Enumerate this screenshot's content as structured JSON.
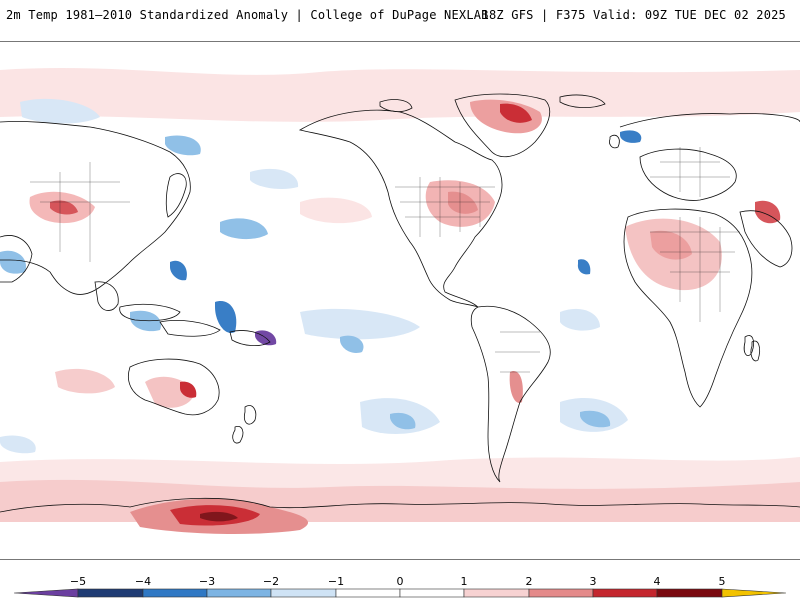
{
  "header": {
    "left": "2m Temp 1981–2010 Standardized Anomaly | College of DuPage NEXLAB",
    "right": "18Z GFS | F375 Valid: 09Z TUE DEC 02 2025"
  },
  "colorbar": {
    "ticks": [
      "−5",
      "−4",
      "−3",
      "−2",
      "−1",
      "0",
      "1",
      "2",
      "3",
      "4",
      "5"
    ],
    "colors": [
      "#6b3fa0",
      "#1f3b73",
      "#2f78c4",
      "#7db4e3",
      "#cfe3f5",
      "#ffffff",
      "#ffffff",
      "#f7d2d2",
      "#e48a8a",
      "#c4262e",
      "#7a0a10",
      "#f2c200"
    ]
  },
  "colors": {
    "warm_light": "#f8d7d7",
    "warm_mid": "#ec9a9a",
    "warm_strong": "#c8232c",
    "warm_dark": "#7a0a10",
    "cool_light": "#d6e6f6",
    "cool_mid": "#8bbde6",
    "cool_strong": "#2f78c4",
    "cool_dark": "#1f3b73"
  }
}
